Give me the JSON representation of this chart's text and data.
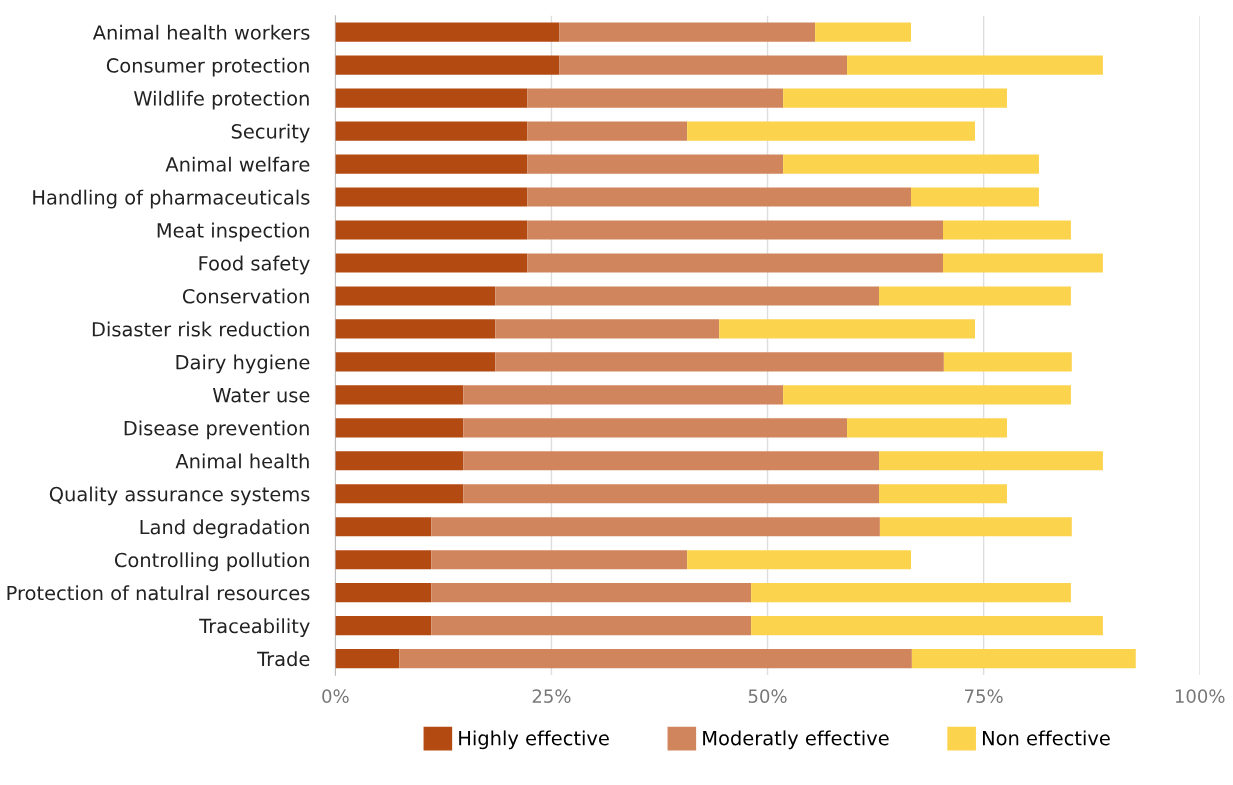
{
  "chart_data": {
    "type": "bar",
    "orientation": "horizontal",
    "stacked": true,
    "categories": [
      "Animal health workers",
      "Consumer protection",
      "Wildlife protection",
      "Security",
      "Animal welfare",
      "Handling of pharmaceuticals",
      "Meat inspection",
      "Food safety",
      "Conservation",
      "Disaster risk reduction",
      "Dairy hygiene",
      "Water use",
      "Disease prevention",
      "Animal health",
      "Quality assurance systems",
      "Land degradation",
      "Controlling pollution",
      "Protection of natulral resources",
      "Traceability",
      "Trade"
    ],
    "series": [
      {
        "name": "Highly effective",
        "color": "#b34a12",
        "values": [
          25.9,
          25.9,
          22.2,
          22.2,
          22.2,
          22.2,
          22.2,
          22.2,
          18.5,
          18.5,
          18.5,
          14.8,
          14.8,
          14.8,
          14.8,
          11.1,
          11.1,
          11.1,
          11.1,
          7.4
        ]
      },
      {
        "name": "Moderatly effective",
        "color": "#d0855c",
        "values": [
          29.6,
          33.3,
          29.6,
          18.5,
          29.6,
          44.4,
          48.1,
          48.1,
          44.4,
          25.9,
          51.9,
          37.0,
          44.4,
          48.1,
          48.1,
          51.9,
          29.6,
          37.0,
          37.0,
          59.3
        ]
      },
      {
        "name": "Non effective",
        "color": "#fcd34d",
        "values": [
          11.1,
          29.6,
          25.9,
          33.3,
          29.6,
          14.8,
          14.8,
          18.5,
          22.2,
          29.6,
          14.8,
          33.3,
          18.5,
          25.9,
          14.8,
          22.2,
          25.9,
          37.0,
          40.7,
          25.9
        ]
      }
    ],
    "xlim": [
      0,
      100
    ],
    "xticks": [
      {
        "value": 0,
        "label": "0%"
      },
      {
        "value": 25,
        "label": "25%"
      },
      {
        "value": 50,
        "label": "50%"
      },
      {
        "value": 75,
        "label": "75%"
      },
      {
        "value": 100,
        "label": "100%"
      }
    ],
    "grid": "x",
    "legend": "bottom"
  }
}
